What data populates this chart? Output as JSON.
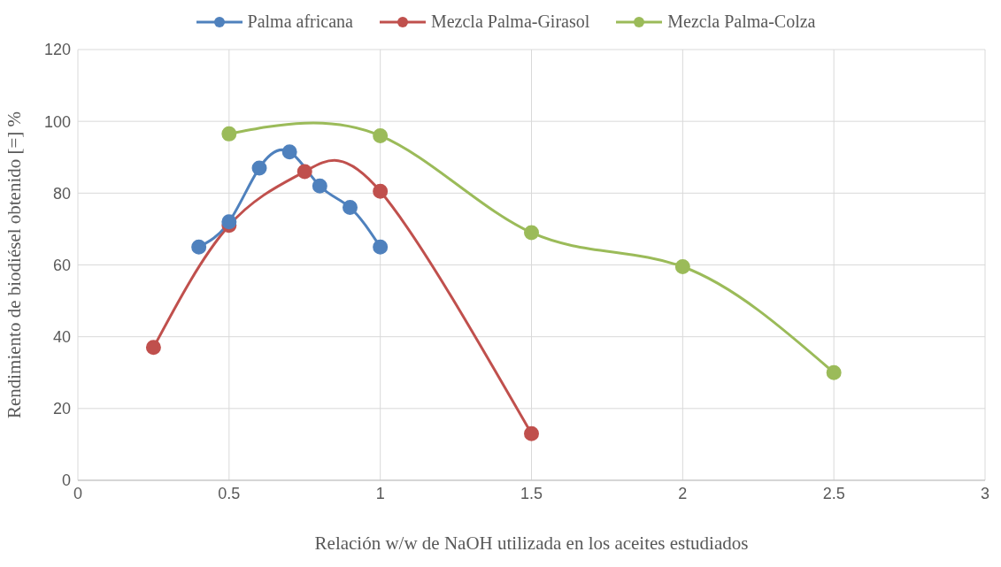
{
  "chart_data": {
    "type": "line",
    "xlabel": "Relación w/w de NaOH utilizada en los aceites estudiados",
    "ylabel": "Rendimiento de biodiésel obtenido [=] %",
    "xlim": [
      0,
      3
    ],
    "xticks": [
      0,
      0.5,
      1,
      1.5,
      2,
      2.5,
      3
    ],
    "ylim": [
      0,
      120
    ],
    "yticks": [
      0,
      20,
      40,
      60,
      80,
      100,
      120
    ],
    "grid": true,
    "legend": "top",
    "marker": "circle",
    "series": [
      {
        "name": "Palma africana",
        "color": "#4f81bd",
        "x": [
          0.4,
          0.5,
          0.6,
          0.7,
          0.8,
          0.9,
          1
        ],
        "values": [
          65,
          72,
          87,
          91.5,
          82,
          76,
          65
        ]
      },
      {
        "name": "Mezcla Palma-Girasol",
        "color": "#c0504d",
        "x": [
          0.25,
          0.5,
          0.75,
          1,
          1.5
        ],
        "values": [
          37,
          71,
          86,
          80.5,
          13
        ]
      },
      {
        "name": "Mezcla Palma-Colza",
        "color": "#9bbb59",
        "x": [
          0.5,
          1,
          1.5,
          2,
          2.5
        ],
        "values": [
          96.5,
          96,
          69,
          59.5,
          30
        ]
      }
    ]
  }
}
